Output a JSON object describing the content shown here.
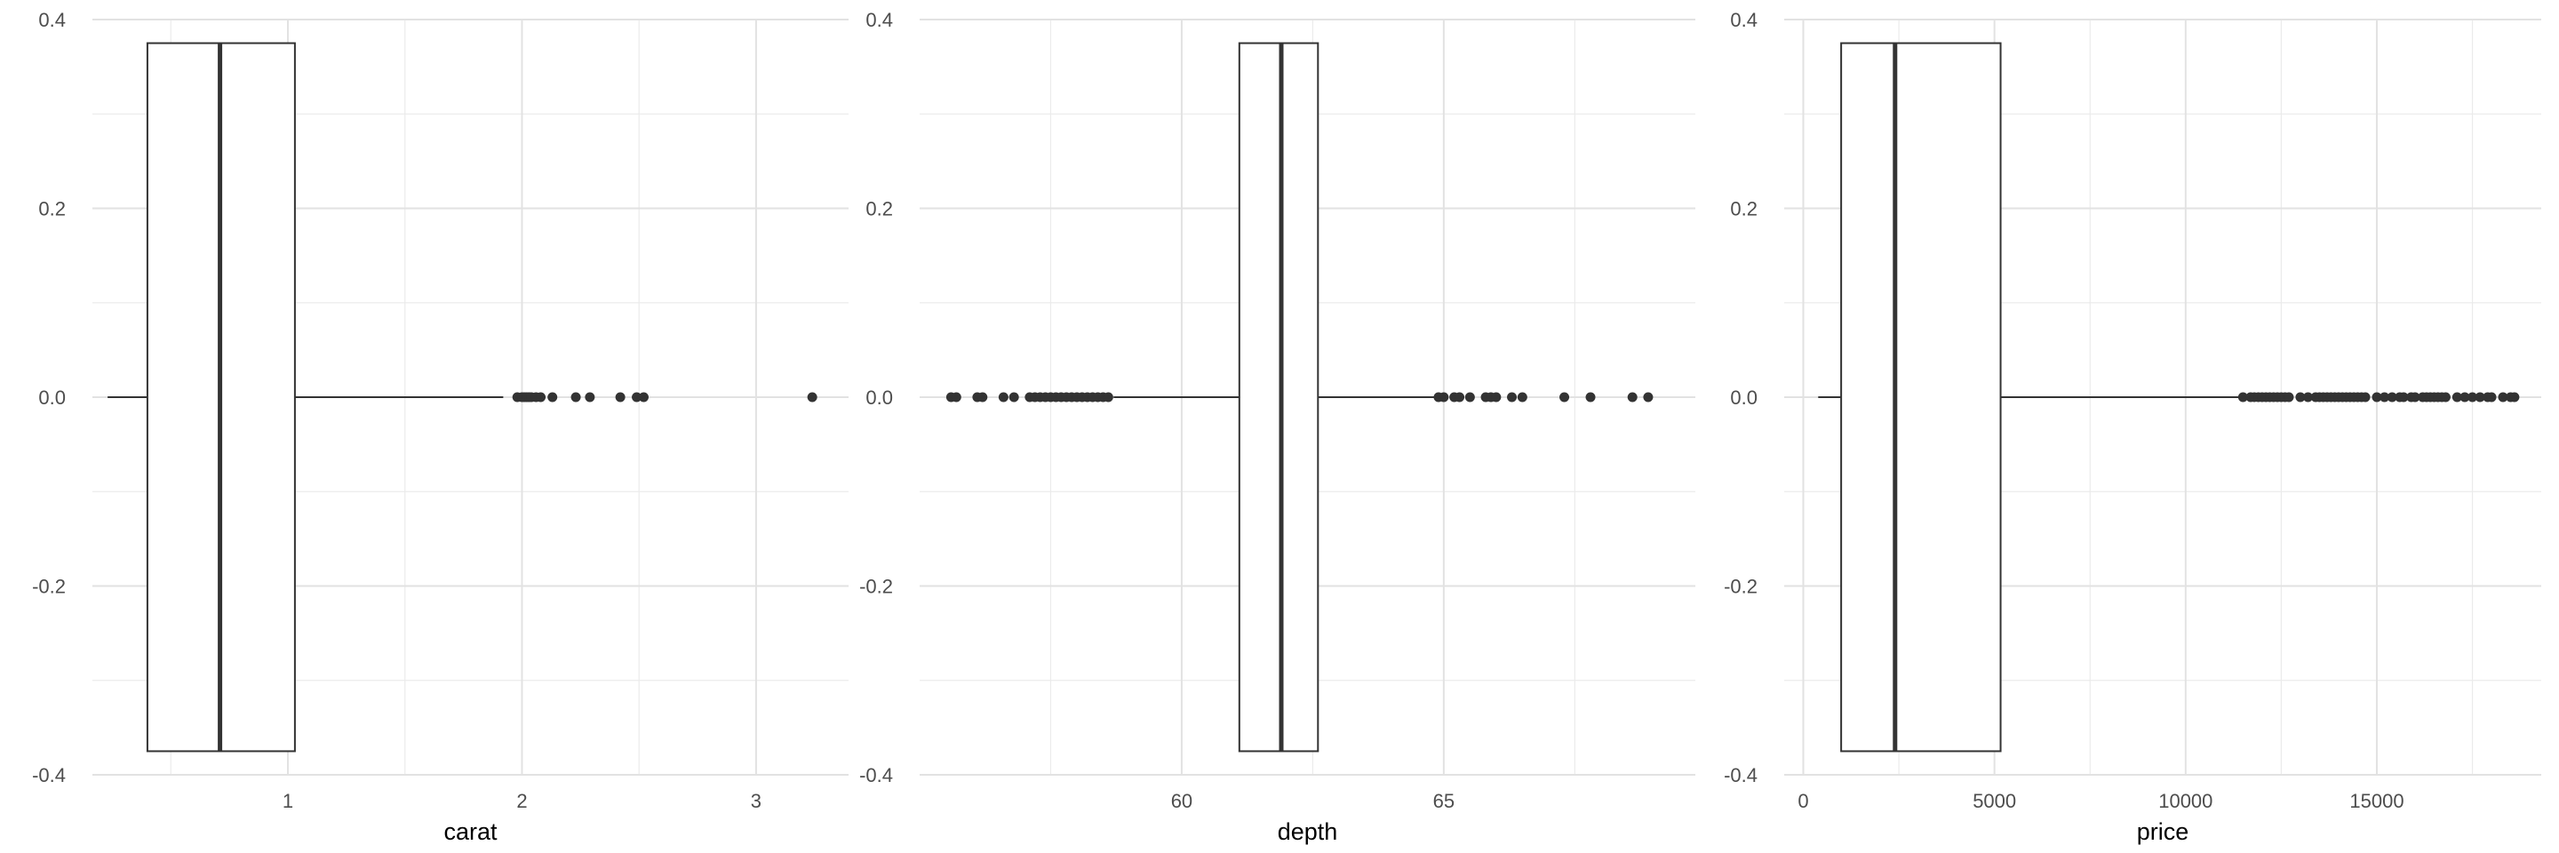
{
  "chart_data": [
    {
      "type": "boxplot",
      "xlabel": "carat",
      "ylabel": "",
      "xlim": [
        0.165,
        3.395
      ],
      "ylim": [
        -0.4,
        0.4
      ],
      "x_ticks": [
        1,
        2,
        3
      ],
      "x_minor_ticks": [
        0.5,
        1.5,
        2.5
      ],
      "y_ticks": [
        -0.4,
        -0.2,
        0.0,
        0.2,
        0.4
      ],
      "y_tick_labels": [
        "-0.4",
        "-0.2",
        "0.0",
        "0.2",
        "0.4"
      ],
      "y_minor_ticks": [
        -0.3,
        -0.1,
        0.1,
        0.3
      ],
      "box": {
        "whisker_low": 0.23,
        "q1": 0.4,
        "median": 0.71,
        "q3": 1.03,
        "whisker_high": 1.92,
        "half_width": 0.375
      },
      "outliers": [
        1.98,
        2.0,
        2.01,
        2.02,
        2.03,
        2.04,
        2.06,
        2.08,
        2.13,
        2.23,
        2.29,
        2.42,
        2.49,
        2.52,
        3.24
      ],
      "grid": true
    },
    {
      "type": "boxplot",
      "xlabel": "depth",
      "ylabel": "",
      "xlim": [
        55.0,
        69.8
      ],
      "ylim": [
        -0.4,
        0.4
      ],
      "x_ticks": [
        60,
        65
      ],
      "x_minor_ticks": [
        57.5,
        62.5,
        67.5
      ],
      "y_ticks": [
        -0.4,
        -0.2,
        0.0,
        0.2,
        0.4
      ],
      "y_tick_labels": [
        "-0.4",
        "-0.2",
        "0.0",
        "0.2",
        "0.4"
      ],
      "y_minor_ticks": [
        -0.3,
        -0.1,
        0.1,
        0.3
      ],
      "box": {
        "whisker_low": 58.7,
        "q1": 61.1,
        "median": 61.9,
        "q3": 62.6,
        "whisker_high": 64.9,
        "half_width": 0.375
      },
      "outliers": [
        55.6,
        55.7,
        56.1,
        56.2,
        56.6,
        56.8,
        57.1,
        57.2,
        57.3,
        57.4,
        57.5,
        57.6,
        57.7,
        57.8,
        57.9,
        58.0,
        58.1,
        58.2,
        58.3,
        58.4,
        58.5,
        58.6,
        64.9,
        65.0,
        65.2,
        65.3,
        65.5,
        65.8,
        65.9,
        66.0,
        66.3,
        66.5,
        67.3,
        67.8,
        68.6,
        68.9
      ],
      "grid": true
    },
    {
      "type": "boxplot",
      "xlabel": "price",
      "ylabel": "",
      "xlim": [
        -500,
        19300
      ],
      "ylim": [
        -0.4,
        0.4
      ],
      "x_ticks": [
        0,
        5000,
        10000,
        15000
      ],
      "x_minor_ticks": [
        2500,
        7500,
        12500,
        17500
      ],
      "y_ticks": [
        -0.4,
        -0.2,
        0.0,
        0.2,
        0.4
      ],
      "y_tick_labels": [
        "-0.4",
        "-0.2",
        "0.0",
        "0.2",
        "0.4"
      ],
      "y_minor_ticks": [
        -0.3,
        -0.1,
        0.1,
        0.3
      ],
      "box": {
        "whisker_low": 390,
        "q1": 990,
        "median": 2400,
        "q3": 5160,
        "whisker_high": 11400,
        "half_width": 0.375
      },
      "outliers": [
        11500,
        11700,
        11800,
        11900,
        12000,
        12100,
        12200,
        12300,
        12400,
        12500,
        12600,
        12700,
        13000,
        13200,
        13400,
        13500,
        13600,
        13700,
        13800,
        13900,
        14000,
        14100,
        14200,
        14300,
        14400,
        14500,
        14600,
        14700,
        15000,
        15200,
        15400,
        15600,
        15700,
        15900,
        16000,
        16200,
        16300,
        16400,
        16500,
        16600,
        16700,
        16800,
        17100,
        17300,
        17500,
        17700,
        17900,
        18000,
        18300,
        18500,
        18600
      ],
      "grid": true
    }
  ]
}
